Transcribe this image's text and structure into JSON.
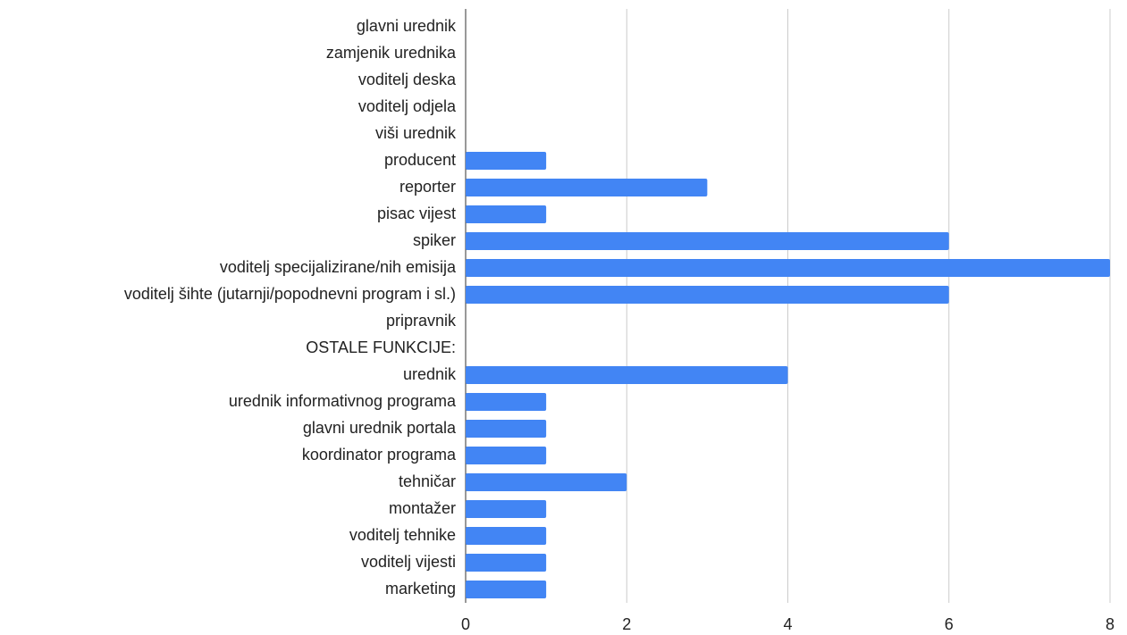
{
  "chart_data": {
    "type": "bar",
    "orientation": "horizontal",
    "categories": [
      "glavni urednik",
      "zamjenik urednika",
      "voditelj deska",
      "voditelj odjela",
      "viši urednik",
      "producent",
      "reporter",
      "pisac vijest",
      "spiker",
      "voditelj specijalizirane/nih emisija",
      "voditelj šihte (jutarnji/popodnevni program i sl.)",
      "pripravnik",
      "OSTALE FUNKCIJE:",
      "urednik",
      "urednik informativnog programa",
      "glavni urednik portala",
      "koordinator programa",
      "tehničar",
      "montažer",
      "voditelj tehnike",
      "voditelj vijesti",
      "marketing"
    ],
    "values": [
      0,
      0,
      0,
      0,
      0,
      1,
      3,
      1,
      6,
      8,
      6,
      0,
      0,
      4,
      1,
      1,
      1,
      2,
      1,
      1,
      1,
      1
    ],
    "color": "#4285f4",
    "xlim": [
      0,
      8
    ],
    "xticks": [
      0,
      2,
      4,
      6,
      8
    ],
    "grid": true
  }
}
